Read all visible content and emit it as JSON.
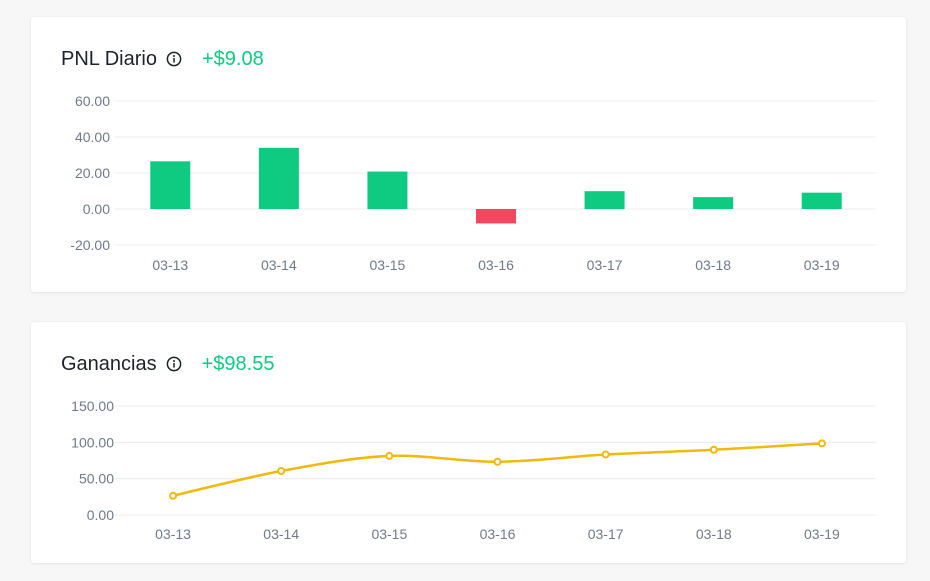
{
  "cards": [
    {
      "title": "PNL Diario",
      "value": "+$9.08",
      "value_color": "#0ecb81",
      "icon": "info-icon",
      "chart_data": {
        "type": "bar",
        "categories": [
          "03-13",
          "03-14",
          "03-15",
          "03-16",
          "03-17",
          "03-18",
          "03-19"
        ],
        "values": [
          26.5,
          34.0,
          20.8,
          -8.0,
          9.9,
          6.6,
          9.08
        ],
        "ylim": [
          -20,
          60
        ],
        "yticks": [
          60,
          40,
          20,
          0,
          -20
        ],
        "ytick_labels": [
          "60.00",
          "40.00",
          "20.00",
          "0.00",
          "-20.00"
        ],
        "positive_color": "#0ecb81",
        "negative_color": "#f6465d",
        "grid": true,
        "title": "",
        "xlabel": "",
        "ylabel": ""
      }
    },
    {
      "title": "Ganancias",
      "value": "+$98.55",
      "value_color": "#0ecb81",
      "icon": "info-icon",
      "chart_data": {
        "type": "line",
        "categories": [
          "03-13",
          "03-14",
          "03-15",
          "03-16",
          "03-17",
          "03-18",
          "03-19"
        ],
        "values": [
          26.5,
          60.5,
          81.3,
          73.3,
          83.2,
          89.8,
          98.55
        ],
        "ylim": [
          0,
          150
        ],
        "yticks": [
          150,
          100,
          50,
          0
        ],
        "ytick_labels": [
          "150.00",
          "100.00",
          "50.00",
          "0.00"
        ],
        "line_color": "#f0b90b",
        "grid": true,
        "title": "",
        "xlabel": "",
        "ylabel": ""
      }
    }
  ]
}
